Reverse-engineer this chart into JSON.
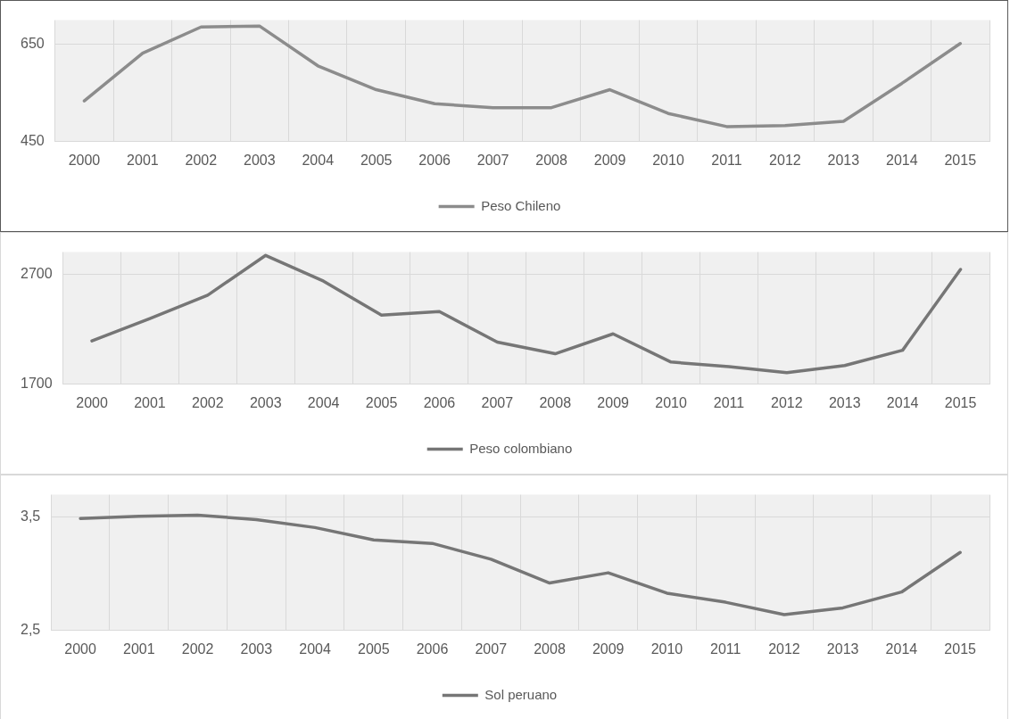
{
  "chart_data": [
    {
      "type": "line",
      "categories": [
        "2000",
        "2001",
        "2002",
        "2003",
        "2004",
        "2005",
        "2006",
        "2007",
        "2008",
        "2009",
        "2010",
        "2011",
        "2012",
        "2013",
        "2014",
        "2015"
      ],
      "series": [
        {
          "name": "Peso Chileno",
          "color": "#8c8c8c",
          "values": [
            534,
            632,
            686,
            688,
            606,
            557,
            528,
            520,
            520,
            557,
            508,
            481,
            483,
            492,
            570,
            652
          ]
        }
      ],
      "ylim": [
        450,
        700
      ],
      "yticks": [
        450,
        650
      ],
      "grid": true,
      "legend": "bottom",
      "marker": "none"
    },
    {
      "type": "line",
      "categories": [
        "2000",
        "2001",
        "2002",
        "2003",
        "2004",
        "2005",
        "2006",
        "2007",
        "2008",
        "2009",
        "2010",
        "2011",
        "2012",
        "2013",
        "2014",
        "2015"
      ],
      "series": [
        {
          "name": "Peso colombiano",
          "color": "#767676",
          "values": [
            2094,
            2296,
            2509,
            2870,
            2636,
            2328,
            2360,
            2083,
            1977,
            2158,
            1902,
            1860,
            1806,
            1870,
            2009,
            2743
          ]
        }
      ],
      "ylim": [
        1700,
        2900
      ],
      "yticks": [
        1700,
        2700
      ],
      "grid": true,
      "legend": "bottom",
      "marker": "none"
    },
    {
      "type": "line",
      "categories": [
        "2000",
        "2001",
        "2002",
        "2003",
        "2004",
        "2005",
        "2006",
        "2007",
        "2008",
        "2009",
        "2010",
        "2011",
        "2012",
        "2013",
        "2014",
        "2015"
      ],
      "series": [
        {
          "name": "Sol peruano",
          "color": "#767676",
          "values": [
            3.49,
            3.51,
            3.52,
            3.48,
            3.41,
            3.3,
            3.27,
            3.13,
            2.92,
            3.01,
            2.83,
            2.75,
            2.64,
            2.7,
            2.84,
            3.19
          ]
        }
      ],
      "ylim": [
        2.5,
        3.7
      ],
      "yticks": [
        {
          "value": 2.5,
          "label": "2,5"
        },
        {
          "value": 3.5,
          "label": "3,5"
        }
      ],
      "grid": true,
      "legend": "bottom",
      "marker": "none"
    }
  ]
}
